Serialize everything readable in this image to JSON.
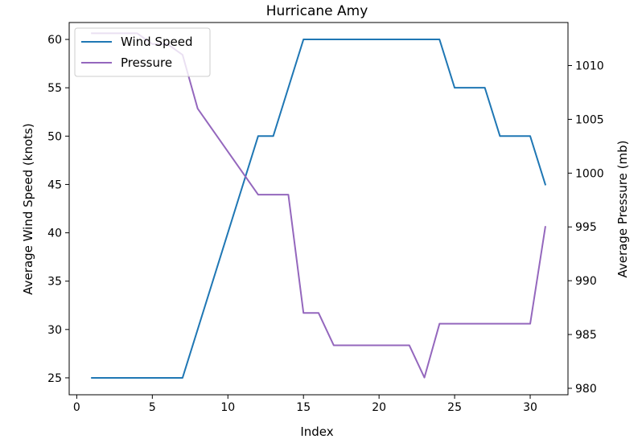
{
  "chart_data": {
    "type": "line",
    "title": "Hurricane Amy",
    "xlabel": "Index",
    "ylabel": "Average Wind Speed (knots)",
    "y2label": "Average Pressure (mb)",
    "xlim": [
      -0.5,
      32.5
    ],
    "ylim": [
      23.25,
      61.75
    ],
    "y2lim": [
      979.4,
      1014.0
    ],
    "xticks": [
      0,
      5,
      10,
      15,
      20,
      25,
      30
    ],
    "yticks": [
      25,
      30,
      35,
      40,
      45,
      50,
      55,
      60
    ],
    "y2ticks": [
      980,
      985,
      990,
      995,
      1000,
      1005,
      1010
    ],
    "grid": false,
    "legend_position": "top-left",
    "x": [
      1,
      2,
      3,
      4,
      5,
      6,
      7,
      8,
      9,
      10,
      11,
      12,
      13,
      14,
      15,
      16,
      17,
      18,
      19,
      20,
      21,
      22,
      23,
      24,
      25,
      26,
      27,
      28,
      29,
      30,
      31
    ],
    "series": [
      {
        "name": "Wind Speed",
        "axis": "left",
        "color": "#1f77b4",
        "values": [
          25,
          25,
          25,
          25,
          25,
          25,
          25,
          30,
          35,
          40,
          45,
          50,
          50,
          55,
          60,
          60,
          60,
          60,
          60,
          60,
          60,
          60,
          60,
          60,
          55,
          55,
          55,
          50,
          50,
          50,
          45
        ]
      },
      {
        "name": "Pressure",
        "axis": "right",
        "color": "#9467bd",
        "values": [
          1013,
          1013,
          1013,
          1013,
          1012,
          1012,
          1011,
          1006,
          1004,
          1002,
          1000,
          998,
          998,
          998,
          987,
          987,
          984,
          984,
          984,
          984,
          984,
          984,
          981,
          986,
          986,
          986,
          986,
          986,
          986,
          986,
          995
        ]
      }
    ]
  }
}
